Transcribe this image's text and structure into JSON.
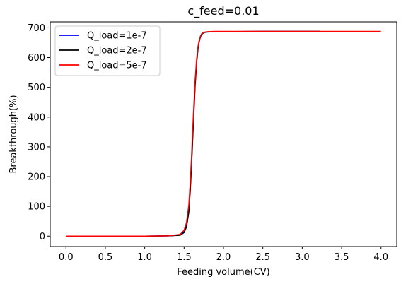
{
  "chart_data": {
    "type": "line",
    "title": "c_feed=0.01",
    "xlabel": "Feeding volume(CV)",
    "ylabel": "Breakthrough(%)",
    "xlim": [
      -0.2,
      4.2
    ],
    "ylim": [
      -35,
      720
    ],
    "xticks": [
      0.0,
      0.5,
      1.0,
      1.5,
      2.0,
      2.5,
      3.0,
      3.5,
      4.0
    ],
    "xtick_labels": [
      "0.0",
      "0.5",
      "1.0",
      "1.5",
      "2.0",
      "2.5",
      "3.0",
      "3.5",
      "4.0"
    ],
    "yticks": [
      0,
      100,
      200,
      300,
      400,
      500,
      600,
      700
    ],
    "ytick_labels": [
      "0",
      "100",
      "200",
      "300",
      "400",
      "500",
      "600",
      "700"
    ],
    "grid": false,
    "legend_position": "top-left",
    "series": [
      {
        "name": "Q_load=1e-7",
        "color": "#0000ff",
        "x": [
          0.0,
          0.5,
          1.0,
          1.3,
          1.45,
          1.5,
          1.53,
          1.56,
          1.58,
          1.6,
          1.62,
          1.64,
          1.66,
          1.68,
          1.7,
          1.72,
          1.75,
          1.8,
          1.9,
          2.0,
          2.5,
          3.0,
          3.22
        ],
        "y": [
          0,
          0,
          0,
          1,
          4,
          15,
          35,
          90,
          170,
          280,
          400,
          510,
          590,
          640,
          665,
          678,
          684,
          686,
          687,
          687,
          688,
          688,
          688
        ]
      },
      {
        "name": "Q_load=2e-7",
        "color": "#000000",
        "x": [
          0.0,
          0.5,
          1.0,
          1.3,
          1.45,
          1.5,
          1.53,
          1.56,
          1.58,
          1.6,
          1.62,
          1.64,
          1.66,
          1.68,
          1.7,
          1.72,
          1.75,
          1.8,
          1.9,
          2.0,
          2.5,
          3.0,
          3.22
        ],
        "y": [
          0,
          0,
          0,
          1,
          3,
          12,
          30,
          80,
          160,
          270,
          390,
          505,
          585,
          637,
          663,
          677,
          684,
          686,
          687,
          687,
          688,
          688,
          688
        ]
      },
      {
        "name": "Q_load=5e-7",
        "color": "#ff0000",
        "x": [
          0.0,
          0.5,
          1.0,
          1.3,
          1.45,
          1.5,
          1.53,
          1.56,
          1.58,
          1.6,
          1.62,
          1.64,
          1.66,
          1.68,
          1.7,
          1.72,
          1.75,
          1.8,
          1.9,
          2.0,
          2.5,
          3.0,
          3.5,
          4.0
        ],
        "y": [
          0,
          0,
          0,
          1,
          6,
          20,
          45,
          105,
          190,
          300,
          420,
          525,
          598,
          644,
          667,
          679,
          685,
          687,
          688,
          688,
          688,
          688,
          688,
          688
        ]
      }
    ]
  }
}
